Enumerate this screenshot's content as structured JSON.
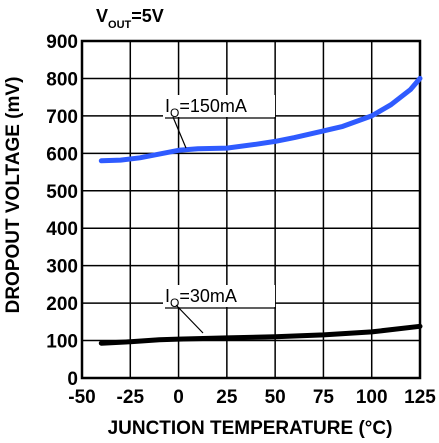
{
  "header": {
    "condition_main": "V",
    "condition_sub": "OUT",
    "condition_value": "=5V"
  },
  "chart_data": {
    "type": "line",
    "title": "",
    "xlabel": "JUNCTION TEMPERATURE (°C)",
    "ylabel": "DROPOUT VOLTAGE (mV)",
    "xlim": [
      -50,
      125
    ],
    "ylim": [
      0,
      900
    ],
    "x_ticks": [
      -50,
      -25,
      0,
      25,
      50,
      75,
      100,
      125
    ],
    "y_ticks": [
      0,
      100,
      200,
      300,
      400,
      500,
      600,
      700,
      800,
      900
    ],
    "grid": true,
    "series": [
      {
        "name": "IO=150mA",
        "label_main": "I",
        "label_sub": "O",
        "label_value": "=150mA",
        "color": "#2f5bff",
        "x": [
          -40,
          -30,
          -20,
          -10,
          0,
          10,
          25,
          40,
          50,
          60,
          75,
          85,
          100,
          110,
          120,
          125
        ],
        "y": [
          580,
          582,
          588,
          598,
          608,
          612,
          614,
          624,
          632,
          642,
          660,
          672,
          700,
          730,
          770,
          800
        ]
      },
      {
        "name": "IO=30mA",
        "label_main": "I",
        "label_sub": "O",
        "label_value": "=30mA",
        "color": "#000000",
        "x": [
          -40,
          -25,
          -10,
          0,
          25,
          50,
          75,
          100,
          125
        ],
        "y": [
          93,
          97,
          102,
          104,
          107,
          110,
          115,
          123,
          138
        ]
      }
    ]
  }
}
